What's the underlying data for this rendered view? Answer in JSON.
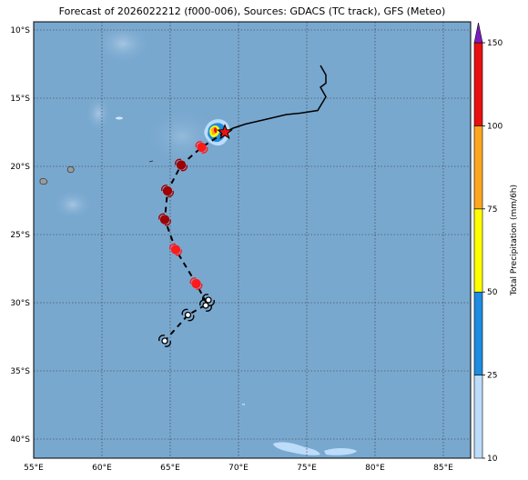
{
  "title": "Forecast of 2026022212 (f000-006), Sources: GDACS (TC track), GFS (Meteo)",
  "map": {
    "lon_range": [
      55,
      87
    ],
    "lat_range": [
      -41.4,
      -9.4
    ],
    "lon_ticks": [
      "55°E",
      "60°E",
      "65°E",
      "70°E",
      "75°E",
      "80°E",
      "85°E"
    ],
    "lat_ticks": [
      "10°S",
      "15°S",
      "20°S",
      "25°S",
      "30°S",
      "35°S",
      "40°S"
    ],
    "ocean_color": "#79a8cf",
    "grid": true
  },
  "colorbar": {
    "label": "Total Precipitation (mm/6h)",
    "ticks": [
      "10",
      "25",
      "50",
      "75",
      "100",
      "150"
    ],
    "colors": [
      "#bcdcfa",
      "#1e8ce0",
      "#ffff00",
      "#ffa620",
      "#e8110f",
      "#7b1ec0"
    ]
  },
  "track": {
    "current_position": {
      "lon": 69.0,
      "lat": -17.5
    },
    "past_path_lonlat": [
      [
        76.0,
        -12.6
      ],
      [
        76.4,
        -13.3
      ],
      [
        76.4,
        -13.9
      ],
      [
        76.0,
        -14.2
      ],
      [
        76.4,
        -14.9
      ],
      [
        75.8,
        -15.9
      ],
      [
        74.5,
        -16.1
      ],
      [
        73.5,
        -16.2
      ],
      [
        71.8,
        -16.6
      ],
      [
        70.5,
        -16.9
      ],
      [
        69.6,
        -17.2
      ],
      [
        69.0,
        -17.5
      ]
    ],
    "forecast_path_lonlat": [
      [
        69.0,
        -17.5
      ],
      [
        67.3,
        -18.6
      ],
      [
        65.8,
        -19.9
      ],
      [
        64.8,
        -21.8
      ],
      [
        64.6,
        -23.9
      ],
      [
        65.4,
        -26.1
      ],
      [
        66.9,
        -28.6
      ],
      [
        67.7,
        -30.1
      ],
      [
        66.3,
        -30.9
      ],
      [
        64.6,
        -32.8
      ]
    ],
    "forecast_points": [
      {
        "lon": 67.3,
        "lat": -18.6,
        "intensity": "tropical-storm"
      },
      {
        "lon": 65.8,
        "lat": -19.9,
        "intensity": "cyclone"
      },
      {
        "lon": 64.8,
        "lat": -21.8,
        "intensity": "cyclone"
      },
      {
        "lon": 64.6,
        "lat": -23.9,
        "intensity": "cyclone"
      },
      {
        "lon": 65.4,
        "lat": -26.1,
        "intensity": "tropical-storm"
      },
      {
        "lon": 66.9,
        "lat": -28.6,
        "intensity": "tropical-storm"
      },
      {
        "lon": 67.8,
        "lat": -29.8,
        "intensity": "depression"
      },
      {
        "lon": 67.6,
        "lat": -30.2,
        "intensity": "depression"
      },
      {
        "lon": 66.3,
        "lat": -30.9,
        "intensity": "depression"
      },
      {
        "lon": 64.6,
        "lat": -32.8,
        "intensity": "depression"
      }
    ],
    "intensity_colors": {
      "tropical-storm": "#ff1a1a",
      "cyclone": "#a00000",
      "depression": "#ffffff"
    }
  }
}
